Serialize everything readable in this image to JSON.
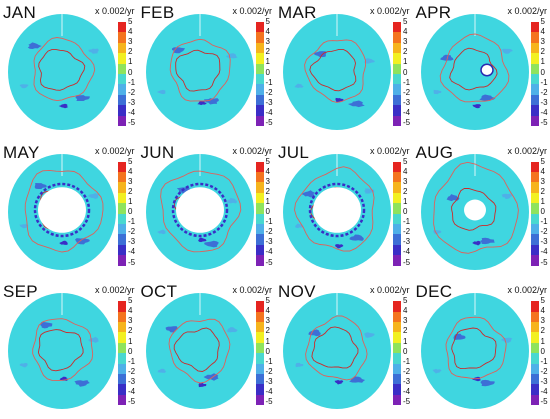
{
  "unit_label": "x 0.002/yr",
  "colorbar": {
    "ticks": [
      "5",
      "4",
      "3",
      "2",
      "1",
      "0",
      "-1",
      "-2",
      "-3",
      "-4",
      "-5"
    ],
    "colors": [
      "#e52520",
      "#f4741f",
      "#f6b41d",
      "#f2f022",
      "#8fe35d",
      "#49d8d0",
      "#4fb0e8",
      "#3d6fd6",
      "#3a2ec6",
      "#7d22b5",
      "#111111"
    ],
    "background": "#3fd6e0"
  },
  "panels": [
    {
      "month": "JAN",
      "ice_fill": "none"
    },
    {
      "month": "FEB",
      "ice_fill": "none"
    },
    {
      "month": "MAR",
      "ice_fill": "none"
    },
    {
      "month": "APR",
      "ice_fill": "small"
    },
    {
      "month": "MAY",
      "ice_fill": "large"
    },
    {
      "month": "JUN",
      "ice_fill": "large"
    },
    {
      "month": "JUL",
      "ice_fill": "large"
    },
    {
      "month": "AUG",
      "ice_fill": "medium"
    },
    {
      "month": "SEP",
      "ice_fill": "none"
    },
    {
      "month": "OCT",
      "ice_fill": "none"
    },
    {
      "month": "NOV",
      "ice_fill": "none"
    },
    {
      "month": "DEC",
      "ice_fill": "none"
    }
  ]
}
